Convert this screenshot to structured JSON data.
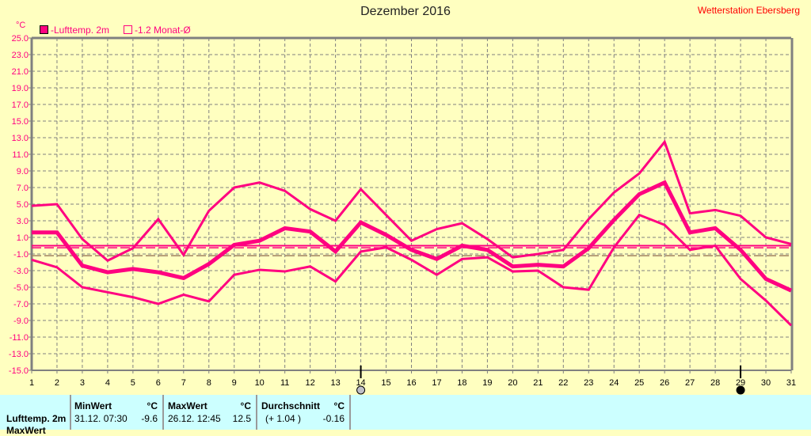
{
  "title": "Dezember 2016",
  "station": "Wetterstation Ebersberg",
  "unit": "°C",
  "legend": {
    "series": "-Lufttemp. 2m",
    "normal": "-1.2 Monat-Ø"
  },
  "colors": {
    "series": "#ff0080",
    "grid": "#808080",
    "background": "#ffffc0",
    "panel": "#ccffff"
  },
  "moon_phases": [
    {
      "day": 14,
      "icon": "full-moon-icon"
    },
    {
      "day": 29,
      "icon": "new-moon-icon"
    }
  ],
  "chart_data": {
    "type": "line",
    "x": [
      1,
      2,
      3,
      4,
      5,
      6,
      7,
      8,
      9,
      10,
      11,
      12,
      13,
      14,
      15,
      16,
      17,
      18,
      19,
      20,
      21,
      22,
      23,
      24,
      25,
      26,
      27,
      28,
      29,
      30,
      31
    ],
    "xlim": [
      1,
      31
    ],
    "ylim": [
      -15,
      25
    ],
    "yticks": [
      "25.0",
      "23.0",
      "21.0",
      "19.0",
      "17.0",
      "15.0",
      "13.0",
      "11.0",
      "9.0",
      "7.0",
      "5.0",
      "3.0",
      "1.0",
      "-1.0",
      "-3.0",
      "-5.0",
      "-7.0",
      "-9.0",
      "-11.0",
      "-13.0",
      "-15.0"
    ],
    "grid": true,
    "series": [
      {
        "role": "max",
        "values": [
          4.8,
          5.0,
          0.8,
          -1.8,
          -0.3,
          3.2,
          -1.1,
          4.2,
          7.0,
          7.6,
          6.6,
          4.4,
          3.0,
          6.8,
          3.7,
          0.6,
          2.0,
          2.7,
          0.8,
          -1.4,
          -1.0,
          -0.5,
          3.2,
          6.4,
          8.7,
          12.5,
          3.9,
          4.3,
          3.6,
          1.0,
          0.2
        ]
      },
      {
        "role": "mean",
        "values": [
          1.6,
          1.6,
          -2.4,
          -3.2,
          -2.8,
          -3.2,
          -3.9,
          -2.2,
          0.1,
          0.6,
          2.1,
          1.7,
          -0.7,
          2.8,
          1.3,
          -0.5,
          -1.6,
          0.0,
          -0.5,
          -2.5,
          -2.3,
          -2.5,
          -0.3,
          3.1,
          6.2,
          7.6,
          1.6,
          2.1,
          -0.5,
          -4.0,
          -5.4
        ]
      },
      {
        "role": "min",
        "values": [
          -1.7,
          -2.6,
          -5.0,
          -5.6,
          -6.2,
          -7.0,
          -5.9,
          -6.7,
          -3.5,
          -2.9,
          -3.1,
          -2.5,
          -4.3,
          -0.7,
          -0.2,
          -1.7,
          -3.5,
          -1.6,
          -1.4,
          -3.1,
          -3.0,
          -5.0,
          -5.3,
          -0.2,
          3.7,
          2.5,
          -0.5,
          0.0,
          -4.0,
          -6.6,
          -9.6
        ]
      }
    ],
    "reference_lines": {
      "zero": 0.0,
      "month_average": -0.16,
      "month_normal": -1.2
    }
  },
  "panel": {
    "row_label": "Lufttemp. 2m",
    "row_label_2": "MaxWert",
    "min": {
      "header": "MinWert",
      "unit": "°C",
      "date": "31.12.  07:30",
      "value": "-9.6"
    },
    "max": {
      "header": "MaxWert",
      "unit": "°C",
      "date": "26.12.  12:45",
      "value": "12.5"
    },
    "avg": {
      "header": "Durchschnitt",
      "unit": "°C",
      "deviation": "(+ 1.04 )",
      "value": "-0.16"
    }
  }
}
